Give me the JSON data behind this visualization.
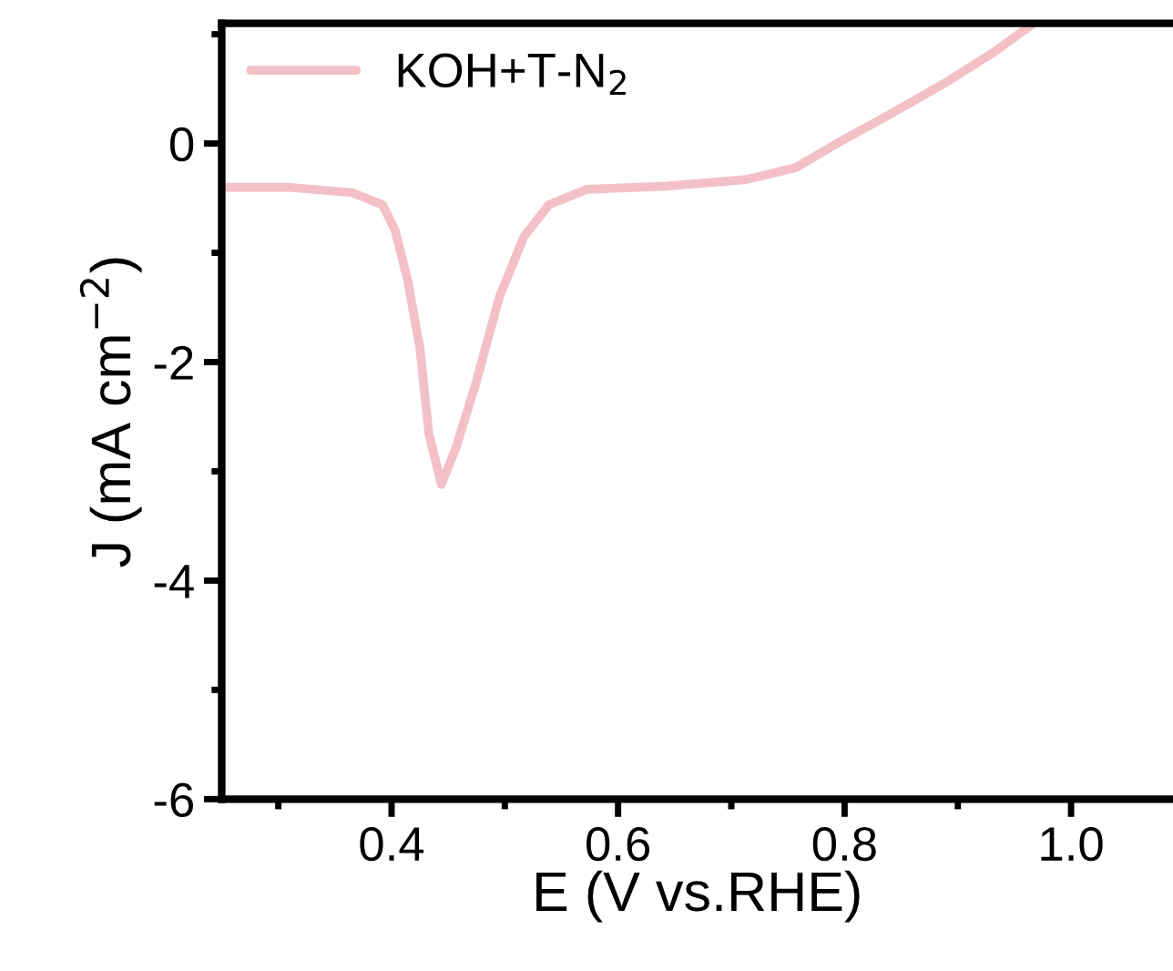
{
  "chart_data": {
    "type": "line",
    "xlabel": "E (V vs.RHE)",
    "ylabel": "J (mA cm$^{−2}$)",
    "xlim": [
      0.25,
      1.09
    ],
    "ylim": [
      -6,
      1.1
    ],
    "xticks": [
      {
        "value": 0.3,
        "label": null
      },
      {
        "value": 0.4,
        "label": "0.4"
      },
      {
        "value": 0.5,
        "label": null
      },
      {
        "value": 0.6,
        "label": "0.6"
      },
      {
        "value": 0.7,
        "label": null
      },
      {
        "value": 0.8,
        "label": "0.8"
      },
      {
        "value": 0.9,
        "label": null
      },
      {
        "value": 1.0,
        "label": "1.0"
      }
    ],
    "yticks": [
      -6,
      {
        "value": -5,
        "label": null
      },
      -4,
      {
        "value": -3,
        "label": null
      },
      -2,
      {
        "value": -1,
        "label": null
      },
      0,
      {
        "value": 1,
        "label": null
      }
    ],
    "legend": "top left",
    "grid": false,
    "series": [
      {
        "name": "KOH+T-N$_{2}$",
        "color": "#f4c0c8",
        "x": [
          0.253,
          0.308,
          0.365,
          0.392,
          0.403,
          0.414,
          0.425,
          0.433,
          0.444,
          0.457,
          0.474,
          0.495,
          0.517,
          0.539,
          0.572,
          0.643,
          0.713,
          0.757,
          0.795,
          0.839,
          0.888,
          0.931,
          0.967
        ],
        "values": [
          -0.4,
          -0.4,
          -0.45,
          -0.56,
          -0.79,
          -1.24,
          -1.87,
          -2.66,
          -3.12,
          -2.78,
          -2.21,
          -1.41,
          -0.85,
          -0.56,
          -0.42,
          -0.39,
          -0.33,
          -0.22,
          0.01,
          0.26,
          0.55,
          0.83,
          1.1
        ]
      }
    ]
  }
}
